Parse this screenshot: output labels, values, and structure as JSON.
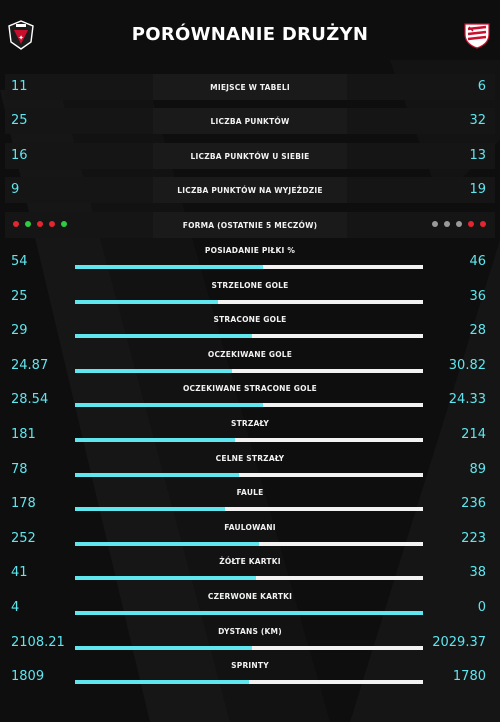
{
  "header": {
    "title": "PORÓWNANIE DRUŻYN"
  },
  "colors": {
    "accent": "#5fe6ef",
    "win": "#2ecc40",
    "loss": "#e3262f",
    "draw": "#9a9a9a"
  },
  "summary": [
    {
      "label": "MIEJSCE W TABELI",
      "left": "11",
      "right": "6"
    },
    {
      "label": "LICZBA PUNKTÓW",
      "left": "25",
      "right": "32"
    },
    {
      "label": "LICZBA PUNKTÓW U SIEBIE",
      "left": "16",
      "right": "13"
    },
    {
      "label": "LICZBA PUNKTÓW NA WYJEŻDZIE",
      "left": "9",
      "right": "19"
    }
  ],
  "form": {
    "label": "FORMA (OSTATNIE 5 MECZÓW)",
    "left": [
      "loss",
      "win",
      "loss",
      "loss",
      "win"
    ],
    "right": [
      "draw",
      "draw",
      "draw",
      "loss",
      "loss"
    ]
  },
  "stats": [
    {
      "label": "POSIADANIE PIŁKI %",
      "left": "54",
      "right": "46",
      "left_share": 0.54
    },
    {
      "label": "STRZELONE GOLE",
      "left": "25",
      "right": "36",
      "left_share": 0.41
    },
    {
      "label": "STRACONE GOLE",
      "left": "29",
      "right": "28",
      "left_share": 0.51
    },
    {
      "label": "OCZEKIWANE GOLE",
      "left": "24.87",
      "right": "30.82",
      "left_share": 0.45
    },
    {
      "label": "OCZEKIWANE STRACONE GOLE",
      "left": "28.54",
      "right": "24.33",
      "left_share": 0.54
    },
    {
      "label": "STRZAŁY",
      "left": "181",
      "right": "214",
      "left_share": 0.46
    },
    {
      "label": "CELNE STRZAŁY",
      "left": "78",
      "right": "89",
      "left_share": 0.47
    },
    {
      "label": "FAULE",
      "left": "178",
      "right": "236",
      "left_share": 0.43
    },
    {
      "label": "FAULOWANI",
      "left": "252",
      "right": "223",
      "left_share": 0.53
    },
    {
      "label": "ŻÓŁTE KARTKI",
      "left": "41",
      "right": "38",
      "left_share": 0.52
    },
    {
      "label": "CZERWONE KARTKI",
      "left": "4",
      "right": "0",
      "left_share": 1.0
    },
    {
      "label": "DYSTANS (KM)",
      "left": "2108.21",
      "right": "2029.37",
      "left_share": 0.51
    },
    {
      "label": "SPRINTY",
      "left": "1809",
      "right": "1780",
      "left_share": 0.5
    }
  ]
}
